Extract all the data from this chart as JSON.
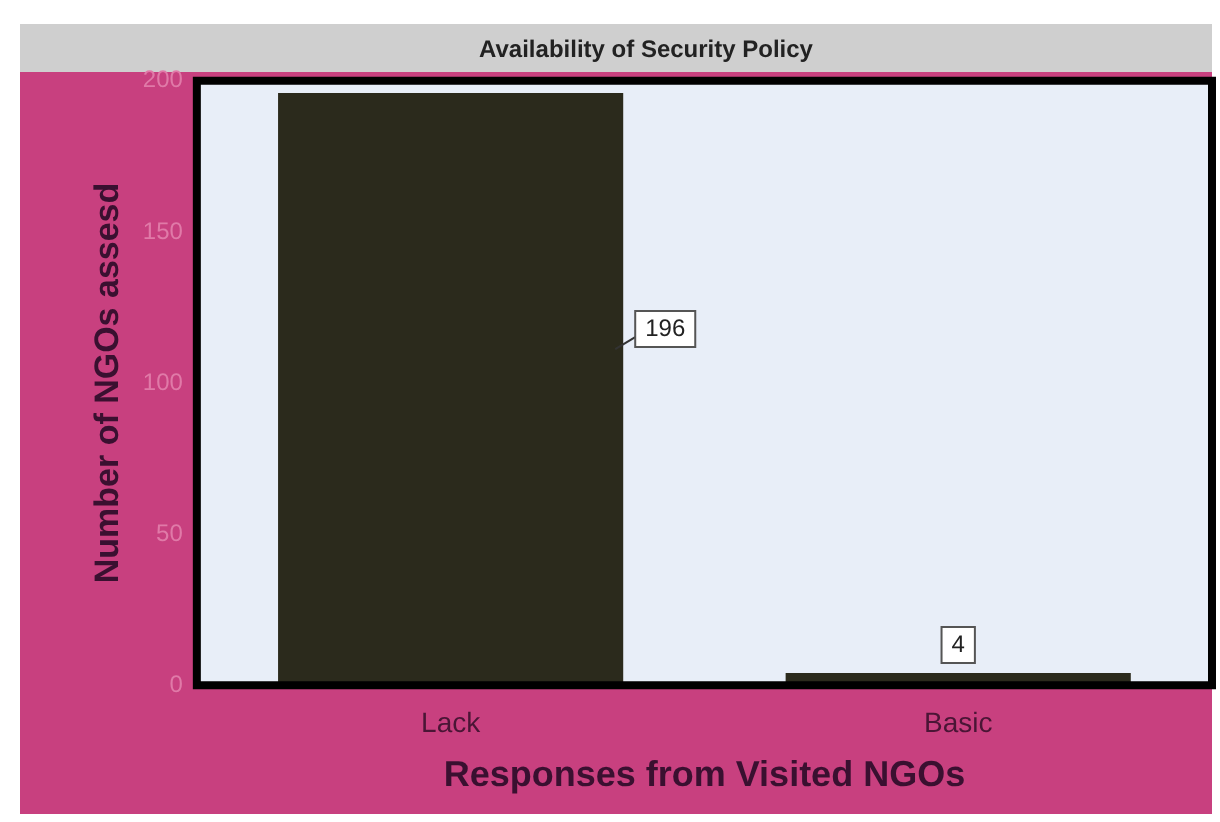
{
  "chart_data": {
    "type": "bar",
    "title": "Availability of Security Policy",
    "xlabel": "Responses from Visited NGOs",
    "ylabel": "Number of NGOs assesd",
    "categories": [
      "Lack",
      "Basic"
    ],
    "values": [
      196,
      4
    ],
    "color": "#2b2a1c",
    "ylim": [
      0,
      200
    ],
    "yticks": [
      0,
      50,
      100,
      150,
      200
    ],
    "grid": false,
    "legend": false,
    "data_labels": true
  }
}
